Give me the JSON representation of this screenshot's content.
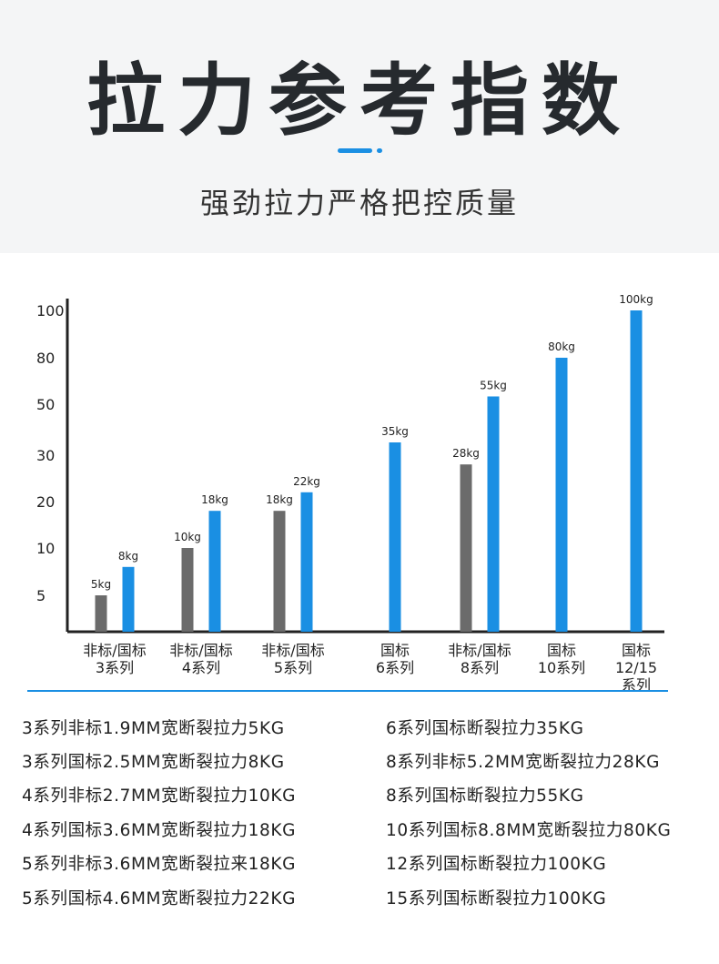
{
  "header": {
    "title": "拉力参考指数",
    "subtitle": "强劲拉力严格把控质量"
  },
  "colors": {
    "accent": "#1a8fe3",
    "gray_bar": "#6b6b6b",
    "blue_bar": "#1a8fe3",
    "axis": "#222222"
  },
  "chart_data": {
    "type": "bar",
    "y_ticks": [
      "100",
      "80",
      "50",
      "30",
      "20",
      "10",
      "5"
    ],
    "groups": [
      {
        "label": [
          "非标/国标",
          "3系列"
        ],
        "bars": [
          {
            "kind": "非标",
            "value": 5,
            "label": "5kg"
          },
          {
            "kind": "国标",
            "value": 8,
            "label": "8kg"
          }
        ]
      },
      {
        "label": [
          "非标/国标",
          "4系列"
        ],
        "bars": [
          {
            "kind": "非标",
            "value": 10,
            "label": "10kg"
          },
          {
            "kind": "国标",
            "value": 18,
            "label": "18kg"
          }
        ]
      },
      {
        "label": [
          "非标/国标",
          "5系列"
        ],
        "bars": [
          {
            "kind": "非标",
            "value": 18,
            "label": "18kg"
          },
          {
            "kind": "国标",
            "value": 22,
            "label": "22kg"
          }
        ]
      },
      {
        "label": [
          "国标",
          "6系列"
        ],
        "bars": [
          {
            "kind": "国标",
            "value": 35,
            "label": "35kg"
          }
        ]
      },
      {
        "label": [
          "非标/国标",
          "8系列"
        ],
        "bars": [
          {
            "kind": "非标",
            "value": 28,
            "label": "28kg"
          },
          {
            "kind": "国标",
            "value": 55,
            "label": "55kg"
          }
        ]
      },
      {
        "label": [
          "国标",
          "10系列"
        ],
        "bars": [
          {
            "kind": "国标",
            "value": 80,
            "label": "80kg"
          }
        ]
      },
      {
        "label": [
          "国标",
          "12/15",
          "系列"
        ],
        "bars": [
          {
            "kind": "国标",
            "value": 100,
            "label": "100kg"
          }
        ]
      }
    ]
  },
  "specs": {
    "left": [
      "3系列非标1.9MM宽断裂拉力5KG",
      "3系列国标2.5MM宽断裂拉力8KG",
      "4系列非标2.7MM宽断裂拉力10KG",
      "4系列国标3.6MM宽断裂拉力18KG",
      "5系列非标3.6MM宽断裂拉来18KG",
      "5系列国标4.6MM宽断裂拉力22KG"
    ],
    "right": [
      "6系列国标断裂拉力35KG",
      "8系列非标5.2MM宽断裂拉力28KG",
      "8系列国标断裂拉力55KG",
      "10系列国标8.8MM宽断裂拉力80KG",
      "12系列国标断裂拉力100KG",
      "15系列国标断裂拉力100KG"
    ]
  }
}
